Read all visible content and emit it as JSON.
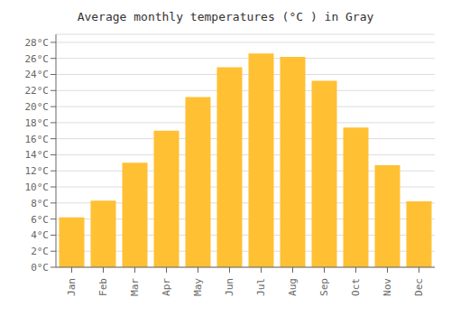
{
  "chart_data": {
    "type": "bar",
    "title": "Average monthly temperatures (°C ) in Gray",
    "categories": [
      "Jan",
      "Feb",
      "Mar",
      "Apr",
      "May",
      "Jun",
      "Jul",
      "Aug",
      "Sep",
      "Oct",
      "Nov",
      "Dec"
    ],
    "values": [
      6.2,
      8.3,
      13.0,
      17.0,
      21.2,
      24.9,
      26.6,
      26.2,
      23.2,
      17.4,
      12.7,
      8.2
    ],
    "color": "#FFC033",
    "ylim": [
      0,
      29
    ],
    "yticks": [
      {
        "value": 0,
        "label": "0°C"
      },
      {
        "value": 2,
        "label": "2°C"
      },
      {
        "value": 4,
        "label": "4°C"
      },
      {
        "value": 6,
        "label": "6°C"
      },
      {
        "value": 8,
        "label": "8°C"
      },
      {
        "value": 10,
        "label": "10°C"
      },
      {
        "value": 12,
        "label": "12°C"
      },
      {
        "value": 14,
        "label": "14°C"
      },
      {
        "value": 16,
        "label": "16°C"
      },
      {
        "value": 18,
        "label": "18°C"
      },
      {
        "value": 20,
        "label": "20°C"
      },
      {
        "value": 22,
        "label": "22°C"
      },
      {
        "value": 24,
        "label": "24°C"
      },
      {
        "value": 26,
        "label": "26°C"
      },
      {
        "value": 28,
        "label": "28°C"
      }
    ],
    "grid": true
  }
}
